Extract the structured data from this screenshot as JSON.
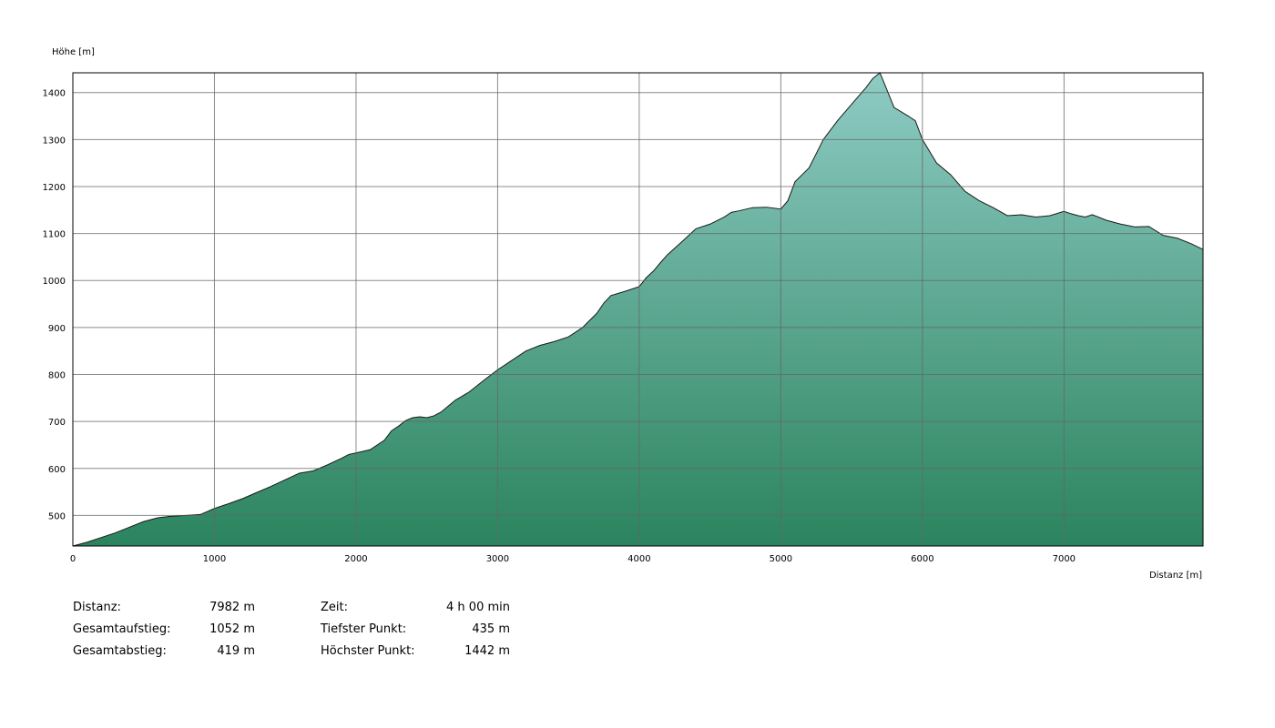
{
  "chart_data": {
    "type": "area",
    "ylabel": "Höhe [m]",
    "xlabel": "Distanz [m]",
    "xlim": [
      0,
      7982
    ],
    "ylim": [
      435,
      1442
    ],
    "grid": true,
    "x_ticks": [
      "0",
      "1000",
      "2000",
      "3000",
      "4000",
      "5000",
      "6000",
      "7000"
    ],
    "y_ticks": [
      "500",
      "600",
      "700",
      "800",
      "900",
      "1000",
      "1100",
      "1200",
      "1300",
      "1400"
    ],
    "fill_colors": {
      "top": "#8ecbc4",
      "bottom": "#2b845e"
    },
    "line_color": "#1a1a1a",
    "series": [
      {
        "x": [
          0,
          100,
          200,
          300,
          400,
          500,
          600,
          680,
          800,
          900,
          1000,
          1100,
          1200,
          1300,
          1400,
          1500,
          1600,
          1700,
          1800,
          1900,
          1950,
          2000,
          2100,
          2200,
          2250,
          2300,
          2350,
          2400,
          2450,
          2500,
          2550,
          2600,
          2700,
          2800,
          2900,
          3000,
          3100,
          3200,
          3300,
          3400,
          3500,
          3600,
          3700,
          3750,
          3800,
          3900,
          4000,
          4050,
          4100,
          4150,
          4200,
          4300,
          4400,
          4500,
          4600,
          4650,
          4700,
          4800,
          4900,
          5000,
          5050,
          5100,
          5200,
          5300,
          5400,
          5500,
          5600,
          5650,
          5700,
          5730,
          5800,
          5900,
          5950,
          6000,
          6100,
          6200,
          6300,
          6400,
          6500,
          6600,
          6700,
          6800,
          6900,
          7000,
          7050,
          7100,
          7150,
          7200,
          7300,
          7400,
          7500,
          7600,
          7700,
          7800,
          7900,
          7982
        ],
        "y": [
          435,
          443,
          453,
          463,
          475,
          487,
          495,
          498,
          500,
          502,
          515,
          525,
          536,
          549,
          562,
          576,
          590,
          595,
          608,
          622,
          630,
          633,
          640,
          660,
          680,
          690,
          702,
          708,
          710,
          708,
          712,
          720,
          745,
          763,
          787,
          810,
          830,
          850,
          862,
          870,
          880,
          900,
          930,
          952,
          968,
          977,
          987,
          1006,
          1020,
          1038,
          1055,
          1082,
          1110,
          1120,
          1135,
          1145,
          1148,
          1155,
          1156,
          1152,
          1170,
          1210,
          1240,
          1300,
          1340,
          1375,
          1410,
          1430,
          1442,
          1420,
          1368,
          1350,
          1340,
          1300,
          1250,
          1225,
          1190,
          1170,
          1155,
          1138,
          1140,
          1135,
          1138,
          1147,
          1142,
          1138,
          1135,
          1140,
          1128,
          1120,
          1114,
          1115,
          1096,
          1090,
          1078,
          1066
        ]
      }
    ]
  },
  "stats": {
    "left": [
      {
        "label": "Distanz:",
        "value": "7982 m"
      },
      {
        "label": "Gesamtaufstieg:",
        "value": "1052 m"
      },
      {
        "label": "Gesamtabstieg:",
        "value": "419 m"
      }
    ],
    "right": [
      {
        "label": "Zeit:",
        "value": "4 h 00 min"
      },
      {
        "label": "Tiefster Punkt:",
        "value": "435 m"
      },
      {
        "label": "Höchster Punkt:",
        "value": "1442 m"
      }
    ]
  }
}
